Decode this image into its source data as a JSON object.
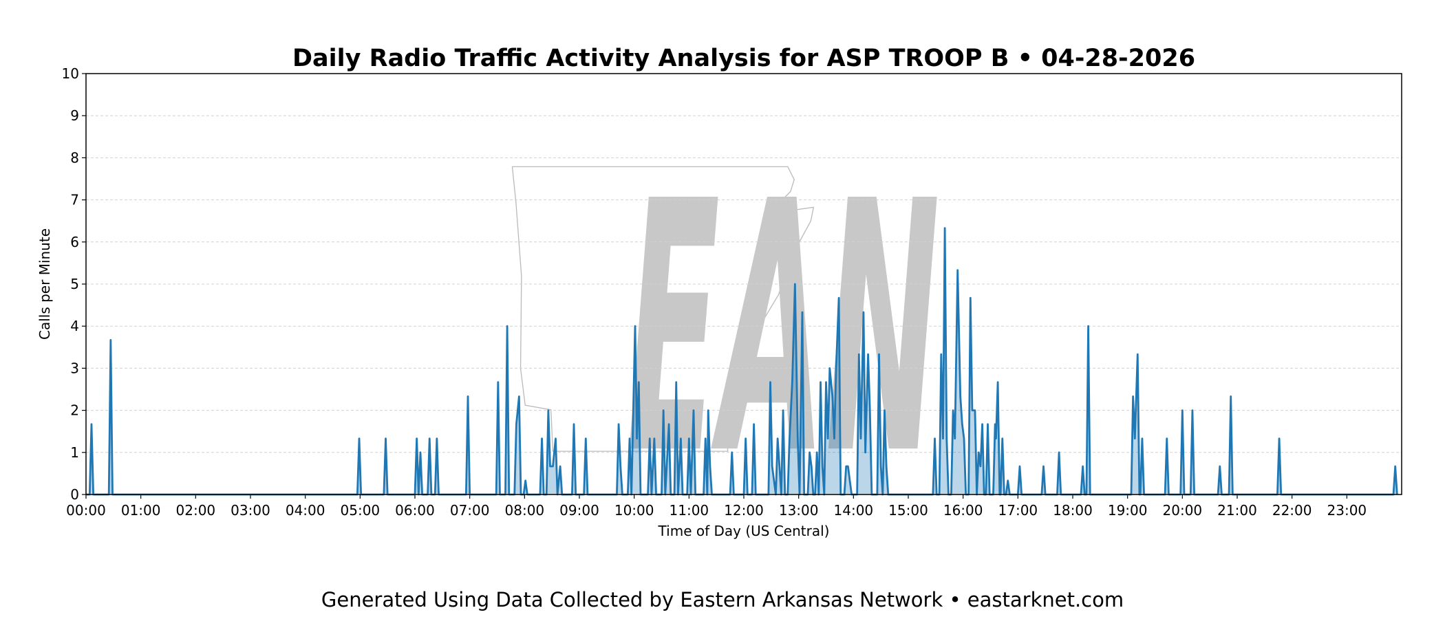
{
  "chart_data": {
    "type": "line",
    "title": "Daily Radio Traffic Activity Analysis for ASP TROOP B • 04-28-2026",
    "xlabel": "Time of Day (US Central)",
    "ylabel": "Calls per Minute",
    "footer": "Generated Using Data Collected by Eastern Arkansas Network • eastarknet.com",
    "watermark": "EAN",
    "color": "#1f77b4",
    "fill_area": true,
    "grid": true,
    "xlim": [
      0,
      1440
    ],
    "ylim": [
      0,
      10
    ],
    "yticks": [
      0,
      1,
      2,
      3,
      4,
      5,
      6,
      7,
      8,
      9,
      10
    ],
    "xticks": [
      {
        "value": 0,
        "label": "00:00"
      },
      {
        "value": 60,
        "label": "01:00"
      },
      {
        "value": 120,
        "label": "02:00"
      },
      {
        "value": 180,
        "label": "03:00"
      },
      {
        "value": 240,
        "label": "04:00"
      },
      {
        "value": 300,
        "label": "05:00"
      },
      {
        "value": 360,
        "label": "06:00"
      },
      {
        "value": 420,
        "label": "07:00"
      },
      {
        "value": 480,
        "label": "08:00"
      },
      {
        "value": 540,
        "label": "09:00"
      },
      {
        "value": 600,
        "label": "10:00"
      },
      {
        "value": 660,
        "label": "11:00"
      },
      {
        "value": 720,
        "label": "12:00"
      },
      {
        "value": 780,
        "label": "13:00"
      },
      {
        "value": 840,
        "label": "14:00"
      },
      {
        "value": 900,
        "label": "15:00"
      },
      {
        "value": 960,
        "label": "16:00"
      },
      {
        "value": 1020,
        "label": "17:00"
      },
      {
        "value": 1080,
        "label": "18:00"
      },
      {
        "value": 1140,
        "label": "19:00"
      },
      {
        "value": 1200,
        "label": "20:00"
      },
      {
        "value": 1260,
        "label": "21:00"
      },
      {
        "value": 1320,
        "label": "22:00"
      },
      {
        "value": 1380,
        "label": "23:00"
      }
    ],
    "x": [
      0,
      4,
      6,
      8,
      25,
      27,
      29,
      297,
      299,
      301,
      326,
      328,
      330,
      360,
      362,
      364,
      366,
      368,
      374,
      376,
      378,
      382,
      384,
      386,
      416,
      418,
      420,
      449,
      451,
      453,
      459,
      461,
      463,
      469,
      471,
      474,
      476,
      479,
      481,
      483,
      497,
      499,
      501,
      504,
      506,
      508,
      511,
      514,
      516,
      519,
      521,
      532,
      534,
      536,
      545,
      547,
      549,
      581,
      583,
      585,
      587,
      593,
      595,
      597,
      601,
      603,
      605,
      607,
      615,
      617,
      619,
      622,
      624,
      630,
      632,
      634,
      638,
      640,
      644,
      646,
      648,
      651,
      653,
      658,
      660,
      662,
      665,
      667,
      676,
      678,
      680,
      681,
      683,
      685,
      705,
      707,
      709,
      720,
      722,
      724,
      729,
      731,
      733,
      747,
      749,
      751,
      755,
      757,
      759,
      761,
      763,
      765,
      768,
      770,
      773,
      776,
      779,
      781,
      784,
      786,
      790,
      792,
      794,
      796,
      798,
      800,
      802,
      804,
      806,
      808,
      810,
      812,
      814,
      817,
      819,
      821,
      824,
      826,
      830,
      832,
      834,
      836,
      838,
      844,
      846,
      848,
      851,
      853,
      856,
      858,
      860,
      866,
      868,
      870,
      872,
      874,
      876,
      878,
      927,
      929,
      931,
      934,
      936,
      938,
      940,
      942,
      944,
      947,
      949,
      951,
      954,
      957,
      959,
      961,
      963,
      966,
      968,
      970,
      973,
      975,
      977,
      979,
      981,
      983,
      985,
      987,
      989,
      993,
      995,
      996,
      998,
      1000,
      1001,
      1003,
      1005,
      1007,
      1009,
      1011,
      1020,
      1022,
      1024,
      1046,
      1048,
      1050,
      1063,
      1065,
      1067,
      1089,
      1091,
      1093,
      1095,
      1097,
      1099,
      1144,
      1146,
      1148,
      1151,
      1153,
      1154,
      1156,
      1158,
      1181,
      1183,
      1185,
      1198,
      1200,
      1202,
      1209,
      1211,
      1213,
      1239,
      1241,
      1243,
      1251,
      1253,
      1255,
      1304,
      1306,
      1308,
      1431,
      1433,
      1435
    ],
    "values": [
      0,
      0,
      1.67,
      0,
      0,
      3.67,
      0,
      0,
      1.33,
      0,
      0,
      1.33,
      0,
      0,
      1.33,
      0,
      1,
      0,
      0,
      1.33,
      0,
      0,
      1.33,
      0,
      0,
      2.33,
      0,
      0,
      2.67,
      0,
      0,
      4,
      0,
      0,
      1.67,
      2.33,
      0,
      0,
      0.33,
      0,
      0,
      1.33,
      0,
      0,
      2,
      0.67,
      0.67,
      1.33,
      0,
      0.67,
      0,
      0,
      1.67,
      0,
      0,
      1.33,
      0,
      0,
      1.67,
      0.67,
      0,
      0,
      1.33,
      0,
      4,
      1.33,
      2.67,
      0,
      0,
      1.33,
      0,
      1.33,
      0,
      0,
      2,
      0,
      1.67,
      0,
      0,
      2.67,
      0,
      1.33,
      0,
      0,
      1.33,
      0,
      2,
      0,
      0,
      1.33,
      0,
      2,
      0.67,
      0,
      0,
      1,
      0,
      0,
      1.33,
      0,
      0,
      1.67,
      0,
      0,
      2.67,
      0.67,
      0,
      1.33,
      0.67,
      0,
      2,
      0,
      0,
      1.33,
      2.67,
      5,
      1.33,
      0,
      4.33,
      0,
      0,
      1,
      0.67,
      0,
      0,
      1,
      0,
      2.67,
      0.67,
      0,
      2.67,
      1.33,
      3,
      2.33,
      1.33,
      3,
      4.67,
      0,
      0,
      0.67,
      0.67,
      0.33,
      0,
      0,
      3.33,
      1.33,
      4.33,
      1,
      3.33,
      2,
      0,
      0,
      3.33,
      0.67,
      0,
      2,
      0.67,
      0,
      0,
      1.33,
      0,
      0,
      3.33,
      1.33,
      6.33,
      1.33,
      0,
      0,
      2,
      1.33,
      5.33,
      2.33,
      1.67,
      1.33,
      0,
      0,
      4.67,
      2,
      2,
      0,
      1,
      0.67,
      1.67,
      0,
      0,
      1.67,
      0,
      0,
      1.67,
      1.33,
      2.67,
      0,
      0,
      1.33,
      0,
      0,
      0.33,
      0,
      0,
      0.67,
      0,
      0,
      0.67,
      0,
      0,
      1,
      0,
      0,
      0.67,
      0,
      0,
      4,
      0,
      0,
      2.33,
      1.33,
      3.33,
      0,
      0,
      1.33,
      0,
      0,
      1.33,
      0,
      0,
      2,
      0,
      0,
      2,
      0,
      0,
      0.67,
      0,
      0,
      2.33,
      0,
      0,
      1.33,
      0,
      0,
      0.67,
      0
    ]
  }
}
